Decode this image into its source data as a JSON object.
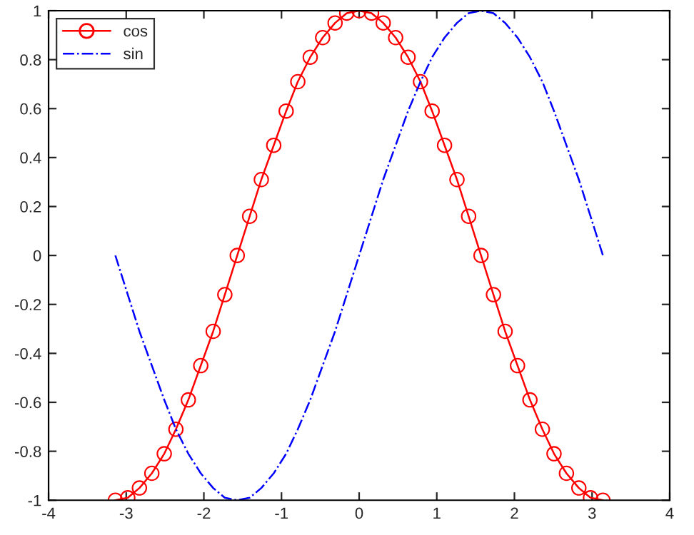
{
  "chart_data": {
    "type": "line",
    "x": [
      -3.14,
      -2.98,
      -2.83,
      -2.67,
      -2.51,
      -2.36,
      -2.2,
      -2.04,
      -1.88,
      -1.73,
      -1.57,
      -1.41,
      -1.26,
      -1.1,
      -0.94,
      -0.79,
      -0.63,
      -0.47,
      -0.31,
      -0.16,
      0,
      0.16,
      0.31,
      0.47,
      0.63,
      0.79,
      0.94,
      1.1,
      1.26,
      1.41,
      1.57,
      1.73,
      1.88,
      2.04,
      2.2,
      2.36,
      2.51,
      2.67,
      2.83,
      2.98,
      3.14
    ],
    "series": [
      {
        "name": "cos",
        "color": "#ff0000",
        "marker": "circle",
        "line_style": "solid",
        "values": [
          -1,
          -0.99,
          -0.95,
          -0.89,
          -0.81,
          -0.71,
          -0.59,
          -0.45,
          -0.31,
          -0.16,
          0,
          0.16,
          0.31,
          0.45,
          0.59,
          0.71,
          0.81,
          0.89,
          0.95,
          0.99,
          1,
          0.99,
          0.95,
          0.89,
          0.81,
          0.71,
          0.59,
          0.45,
          0.31,
          0.16,
          0,
          -0.16,
          -0.31,
          -0.45,
          -0.59,
          -0.71,
          -0.81,
          -0.89,
          -0.95,
          -0.99,
          -1
        ]
      },
      {
        "name": "sin",
        "color": "#0000ff",
        "marker": "none",
        "line_style": "dashdot",
        "values": [
          0,
          -0.16,
          -0.31,
          -0.45,
          -0.59,
          -0.71,
          -0.81,
          -0.89,
          -0.95,
          -0.99,
          -1,
          -0.99,
          -0.95,
          -0.89,
          -0.81,
          -0.71,
          -0.59,
          -0.45,
          -0.31,
          -0.16,
          0,
          0.16,
          0.31,
          0.45,
          0.59,
          0.71,
          0.81,
          0.89,
          0.95,
          0.99,
          1,
          0.99,
          0.95,
          0.89,
          0.81,
          0.71,
          0.59,
          0.45,
          0.31,
          0.16,
          0
        ]
      }
    ],
    "xlim": [
      -4,
      4
    ],
    "xticks": [
      -4,
      -3,
      -2,
      -1,
      0,
      1,
      2,
      3,
      4
    ],
    "ylim": [
      -1,
      1
    ],
    "yticks": [
      -1,
      -0.8,
      -0.6,
      -0.4,
      -0.2,
      0,
      0.2,
      0.4,
      0.6,
      0.8,
      1
    ],
    "grid": false,
    "legend": "top left"
  }
}
